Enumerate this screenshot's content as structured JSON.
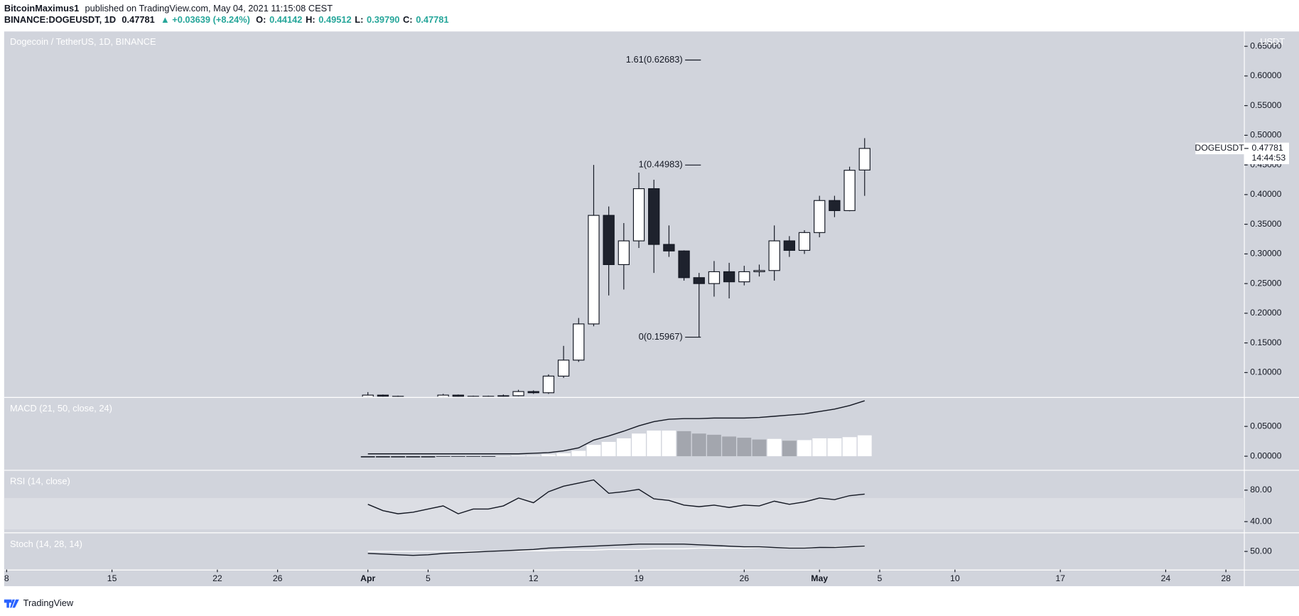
{
  "header": {
    "author": "BitcoinMaximus1",
    "published": "published on TradingView.com, May 04, 2021 11:15:08 CEST",
    "symbol": "BINANCE:DOGEUSDT, 1D",
    "last": "0.47781",
    "change": "▲ +0.03639 (+8.24%)",
    "ohlc": [
      {
        "key": "O:",
        "value": "0.44142"
      },
      {
        "key": "H:",
        "value": "0.49512"
      },
      {
        "key": "L:",
        "value": "0.39790"
      },
      {
        "key": "C:",
        "value": "0.47781"
      }
    ]
  },
  "chart_data": [
    {
      "type": "candlestick",
      "title": "Dogecoin / TetherUS, 1D, BINANCE",
      "axis_unit": "USDT",
      "symbol_label": "DOGEUSDT",
      "countdown": "14:44:53",
      "up_color": "#ffffff",
      "down_color": "#1e222d",
      "x": [
        "Apr 1",
        "Apr 2",
        "Apr 3",
        "Apr 4",
        "Apr 5",
        "Apr 6",
        "Apr 7",
        "Apr 8",
        "Apr 9",
        "Apr 10",
        "Apr 11",
        "Apr 12",
        "Apr 13",
        "Apr 14",
        "Apr 15",
        "Apr 16",
        "Apr 17",
        "Apr 18",
        "Apr 19",
        "Apr 20",
        "Apr 21",
        "Apr 22",
        "Apr 23",
        "Apr 24",
        "Apr 25",
        "Apr 26",
        "Apr 27",
        "Apr 28",
        "Apr 29",
        "Apr 30",
        "May 1",
        "May 2",
        "May 3",
        "May 4"
      ],
      "open": [
        0.058,
        0.062,
        0.06,
        0.058,
        0.057,
        0.058,
        0.062,
        0.059,
        0.06,
        0.06,
        0.061,
        0.068,
        0.066,
        0.094,
        0.121,
        0.182,
        0.365,
        0.282,
        0.322,
        0.41,
        0.316,
        0.305,
        0.26,
        0.25,
        0.27,
        0.253,
        0.27,
        0.272,
        0.322,
        0.306,
        0.336,
        0.39,
        0.373,
        0.44142
      ],
      "high": [
        0.067,
        0.063,
        0.061,
        0.059,
        0.059,
        0.064,
        0.063,
        0.061,
        0.061,
        0.063,
        0.071,
        0.07,
        0.097,
        0.145,
        0.192,
        0.45,
        0.38,
        0.352,
        0.437,
        0.425,
        0.348,
        0.306,
        0.268,
        0.288,
        0.285,
        0.28,
        0.282,
        0.348,
        0.33,
        0.34,
        0.398,
        0.398,
        0.447,
        0.49512
      ],
      "low": [
        0.055,
        0.058,
        0.055,
        0.054,
        0.055,
        0.057,
        0.057,
        0.058,
        0.058,
        0.059,
        0.06,
        0.064,
        0.064,
        0.091,
        0.118,
        0.178,
        0.23,
        0.24,
        0.31,
        0.268,
        0.295,
        0.255,
        0.15967,
        0.228,
        0.225,
        0.247,
        0.262,
        0.255,
        0.295,
        0.3,
        0.328,
        0.362,
        0.372,
        0.3979
      ],
      "close": [
        0.062,
        0.06,
        0.058,
        0.057,
        0.058,
        0.062,
        0.059,
        0.06,
        0.06,
        0.061,
        0.068,
        0.066,
        0.094,
        0.121,
        0.182,
        0.365,
        0.282,
        0.322,
        0.41,
        0.316,
        0.305,
        0.26,
        0.25,
        0.27,
        0.253,
        0.27,
        0.272,
        0.322,
        0.306,
        0.336,
        0.39,
        0.373,
        0.441,
        0.47781
      ],
      "ylim": [
        0.0595,
        0.675
      ],
      "yticks": [
        {
          "value": 0.1,
          "label": "0.10000"
        },
        {
          "value": 0.15,
          "label": "0.15000"
        },
        {
          "value": 0.2,
          "label": "0.20000"
        },
        {
          "value": 0.25,
          "label": "0.25000"
        },
        {
          "value": 0.3,
          "label": "0.30000"
        },
        {
          "value": 0.35,
          "label": "0.35000"
        },
        {
          "value": 0.4,
          "label": "0.40000"
        },
        {
          "value": 0.45,
          "label": "0.45000"
        },
        {
          "value": 0.5,
          "label": "0.50000"
        },
        {
          "value": 0.55,
          "label": "0.55000"
        },
        {
          "value": 0.6,
          "label": "0.60000"
        },
        {
          "value": 0.65,
          "label": "0.65000"
        }
      ],
      "xticks": [
        {
          "value": "Mar 8",
          "label": "8"
        },
        {
          "value": "Mar 15",
          "label": "15"
        },
        {
          "value": "Mar 22",
          "label": "22"
        },
        {
          "value": "Mar 26",
          "label": "26"
        },
        {
          "value": "Apr 1",
          "label": "Apr"
        },
        {
          "value": "Apr 5",
          "label": "5"
        },
        {
          "value": "Apr 12",
          "label": "12"
        },
        {
          "value": "Apr 19",
          "label": "19"
        },
        {
          "value": "Apr 26",
          "label": "26"
        },
        {
          "value": "May 1",
          "label": "May"
        },
        {
          "value": "May 5",
          "label": "5"
        },
        {
          "value": "May 10",
          "label": "10"
        },
        {
          "value": "May 17",
          "label": "17"
        },
        {
          "value": "May 24",
          "label": "24"
        },
        {
          "value": "May 28",
          "label": "28"
        }
      ],
      "fib_levels": [
        {
          "label": "1.61(0.62683)",
          "value": 0.62683
        },
        {
          "label": "1(0.44983)",
          "value": 0.44983
        },
        {
          "label": "0(0.15967)",
          "value": 0.15967
        }
      ]
    },
    {
      "type": "macd",
      "title": "MACD (21, 50, close, 24)",
      "line_color": "#131722",
      "hist_colors": {
        "grow": "#ffffff",
        "fall": "#a3a6ae",
        "neg": "#1e222d"
      },
      "line": [
        0.004,
        0.004,
        0.004,
        0.004,
        0.004,
        0.004,
        0.004,
        0.004,
        0.004,
        0.004,
        0.004,
        0.005,
        0.006,
        0.009,
        0.014,
        0.027,
        0.034,
        0.042,
        0.051,
        0.058,
        0.062,
        0.063,
        0.063,
        0.064,
        0.064,
        0.064,
        0.065,
        0.067,
        0.069,
        0.071,
        0.075,
        0.079,
        0.085,
        0.093
      ],
      "histogram": [
        -0.002,
        -0.002,
        -0.002,
        -0.002,
        -0.002,
        -0.001,
        -0.001,
        -0.001,
        -0.001,
        0,
        0.001,
        0.001,
        0.003,
        0.005,
        0.009,
        0.019,
        0.024,
        0.03,
        0.038,
        0.043,
        0.043,
        0.042,
        0.038,
        0.036,
        0.033,
        0.031,
        0.028,
        0.029,
        0.026,
        0.027,
        0.03,
        0.03,
        0.032,
        0.035
      ],
      "ylim": [
        -0.0222,
        0.0972
      ],
      "yticks": [
        {
          "value": 0.05,
          "label": "0.05000"
        },
        {
          "value": 0,
          "label": "0.00000"
        }
      ]
    },
    {
      "type": "line",
      "title": "RSI (14, close)",
      "band": [
        30,
        70
      ],
      "band_color": "#dcdee4",
      "series": [
        {
          "color": "#131722",
          "values": [
            62,
            54,
            50,
            52,
            56,
            60,
            50,
            56,
            56,
            60,
            70,
            64,
            78,
            85,
            89,
            93,
            76,
            78,
            81,
            69,
            67,
            61,
            59,
            61,
            58,
            61,
            60,
            66,
            62,
            65,
            70,
            68,
            73,
            75
          ]
        }
      ],
      "ylim": [
        27.4,
        104.2
      ],
      "yticks": [
        {
          "value": 80,
          "label": "80.00"
        },
        {
          "value": 40,
          "label": "40.00"
        }
      ]
    },
    {
      "type": "line",
      "title": "Stoch (14, 28, 14)",
      "series": [
        {
          "color": "#131722",
          "values": [
            47,
            46,
            45,
            44,
            45,
            47,
            48,
            49,
            50,
            51,
            52,
            53,
            55,
            56,
            57,
            58,
            59,
            60,
            61,
            61,
            61,
            61,
            60,
            59,
            58,
            57,
            57,
            56,
            55,
            55,
            56,
            56,
            57,
            58
          ]
        },
        {
          "color": "#ffffff",
          "values": [
            50,
            50,
            50,
            50,
            50,
            50,
            50,
            50,
            50,
            51,
            51,
            51,
            51,
            52,
            52,
            52,
            53,
            53,
            53,
            54,
            54,
            54,
            55,
            55,
            55,
            55,
            56,
            56,
            56,
            56,
            56,
            57,
            57,
            57
          ]
        }
      ],
      "ylim": [
        22.5,
        76.25
      ],
      "yticks": [
        {
          "value": 50,
          "label": "50.00"
        }
      ]
    }
  ],
  "footer": {
    "brand": "TradingView"
  }
}
